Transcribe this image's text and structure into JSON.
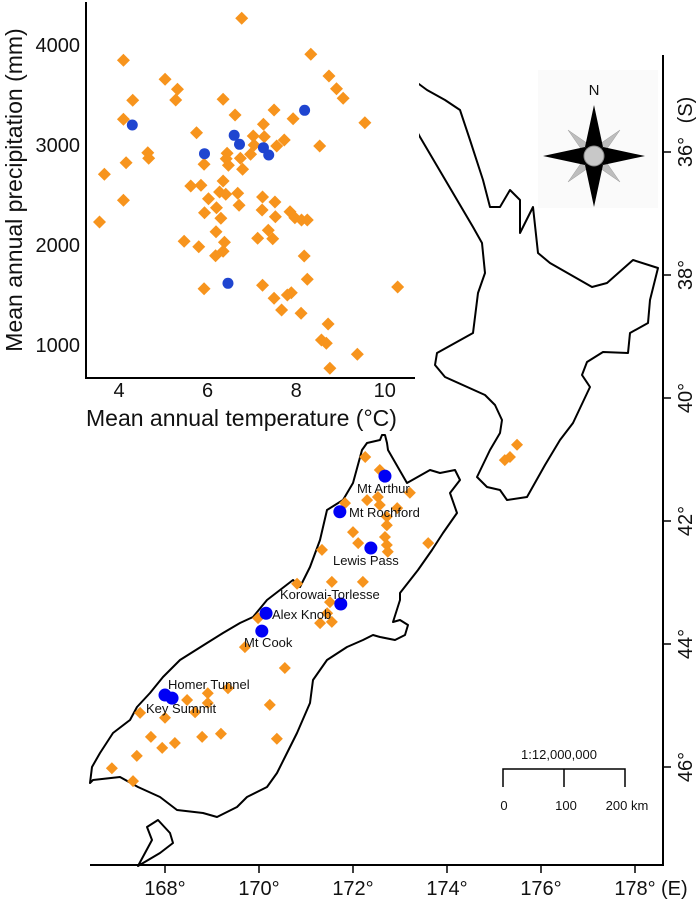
{
  "colors": {
    "orange": "#F7941D",
    "scatter_blue": "#1F45D0",
    "map_blue": "#0000F5",
    "compass_gray": "#BDBDBD"
  },
  "map": {
    "lon_ticks": [
      {
        "value": 168,
        "label": "168°"
      },
      {
        "value": 170,
        "label": "170°"
      },
      {
        "value": 172,
        "label": "172°"
      },
      {
        "value": 174,
        "label": "174°"
      },
      {
        "value": 176,
        "label": "176°"
      },
      {
        "value": 178,
        "label": "178°"
      }
    ],
    "lon_unit": "(E)",
    "lat_ticks": [
      {
        "value": 36,
        "label": "36°"
      },
      {
        "value": 38,
        "label": "38°"
      },
      {
        "value": 40,
        "label": "40°"
      },
      {
        "value": 42,
        "label": "42°"
      },
      {
        "value": 44,
        "label": "44°"
      },
      {
        "value": 46,
        "label": "46°"
      }
    ],
    "lat_unit": "(S)",
    "compass_label": "N",
    "scale": {
      "ratio": "1:12,000,000",
      "labels": [
        "0",
        "100",
        "200 km"
      ]
    },
    "sites": [
      {
        "name": "Mt Arthur",
        "lon": 172.68,
        "lat": 41.27
      },
      {
        "name": "Mt Rochford",
        "lon": 171.72,
        "lat": 41.85
      },
      {
        "name": "Lewis Pass",
        "lon": 172.38,
        "lat": 42.44
      },
      {
        "name": "Korowai-Torlesse",
        "lon": 171.74,
        "lat": 43.35
      },
      {
        "name": "Alex Knob",
        "lon": 170.15,
        "lat": 43.5
      },
      {
        "name": "Mt Cook",
        "lon": 170.06,
        "lat": 43.79
      },
      {
        "name": "Homer Tunnel",
        "lon": 168.0,
        "lat": 44.83
      },
      {
        "name": "Key Summit",
        "lon": 168.15,
        "lat": 44.88
      }
    ],
    "other_sites": [
      [
        172.26,
        40.96
      ],
      [
        172.57,
        41.17
      ],
      [
        173.21,
        41.54
      ],
      [
        172.3,
        41.66
      ],
      [
        172.53,
        41.61
      ],
      [
        172.57,
        41.74
      ],
      [
        172.94,
        41.79
      ],
      [
        171.83,
        41.71
      ],
      [
        172.72,
        41.93
      ],
      [
        172.72,
        42.07
      ],
      [
        172.0,
        42.18
      ],
      [
        172.68,
        42.26
      ],
      [
        172.11,
        42.36
      ],
      [
        172.72,
        42.39
      ],
      [
        172.74,
        42.5
      ],
      [
        173.6,
        42.36
      ],
      [
        171.34,
        42.47
      ],
      [
        171.55,
        42.99
      ],
      [
        172.21,
        42.99
      ],
      [
        170.81,
        43.02
      ],
      [
        171.51,
        43.32
      ],
      [
        171.45,
        43.5
      ],
      [
        171.3,
        43.66
      ],
      [
        171.55,
        43.64
      ],
      [
        169.98,
        43.58
      ],
      [
        169.7,
        44.05
      ],
      [
        170.55,
        44.39
      ],
      [
        168.47,
        44.91
      ],
      [
        168.91,
        44.8
      ],
      [
        168.91,
        44.96
      ],
      [
        169.34,
        44.72
      ],
      [
        168.64,
        45.11
      ],
      [
        170.23,
        44.99
      ],
      [
        167.47,
        45.12
      ],
      [
        168.0,
        45.2
      ],
      [
        167.7,
        45.51
      ],
      [
        168.79,
        45.51
      ],
      [
        169.19,
        45.46
      ],
      [
        170.38,
        45.54
      ],
      [
        167.4,
        45.82
      ],
      [
        167.94,
        45.69
      ],
      [
        168.21,
        45.61
      ],
      [
        166.87,
        46.02
      ],
      [
        167.32,
        46.23
      ],
      [
        175.49,
        40.76
      ],
      [
        175.34,
        40.96
      ],
      [
        175.23,
        41.01
      ]
    ]
  },
  "chart_data": {
    "type": "scatter",
    "title": "",
    "xlabel": "Mean annual temperature (°C)",
    "ylabel": "Mean annual precipitation (mm)",
    "xlim": [
      3.4,
      10.7
    ],
    "ylim": [
      720,
      4400
    ],
    "xticks": [
      4,
      6,
      8,
      10
    ],
    "yticks": [
      1000,
      2000,
      3000,
      4000
    ],
    "grid": false,
    "series": [
      {
        "marker": "diamond",
        "color": "#F7941D",
        "points": [
          [
            6.77,
            4267
          ],
          [
            8.33,
            3907
          ],
          [
            4.1,
            3847
          ],
          [
            5.04,
            3657
          ],
          [
            5.32,
            3557
          ],
          [
            5.28,
            3450
          ],
          [
            4.31,
            3447
          ],
          [
            6.35,
            3457
          ],
          [
            8.74,
            3690
          ],
          [
            8.91,
            3563
          ],
          [
            9.06,
            3467
          ],
          [
            9.55,
            3223
          ],
          [
            4.1,
            3257
          ],
          [
            6.62,
            3300
          ],
          [
            7.5,
            3350
          ],
          [
            7.93,
            3263
          ],
          [
            5.75,
            3123
          ],
          [
            7.26,
            3207
          ],
          [
            7.03,
            3090
          ],
          [
            7.28,
            3083
          ],
          [
            7.05,
            3000
          ],
          [
            7.56,
            2990
          ],
          [
            7.73,
            3050
          ],
          [
            8.53,
            2990
          ],
          [
            4.65,
            2923
          ],
          [
            4.67,
            2867
          ],
          [
            4.16,
            2823
          ],
          [
            3.67,
            2707
          ],
          [
            6.44,
            2917
          ],
          [
            6.42,
            2863
          ],
          [
            6.74,
            2867
          ],
          [
            6.97,
            2907
          ],
          [
            5.92,
            2807
          ],
          [
            6.47,
            2797
          ],
          [
            6.79,
            2757
          ],
          [
            6.35,
            2640
          ],
          [
            5.62,
            2590
          ],
          [
            5.85,
            2597
          ],
          [
            6.27,
            2530
          ],
          [
            6.41,
            2507
          ],
          [
            6.68,
            2517
          ],
          [
            6.02,
            2463
          ],
          [
            4.1,
            2447
          ],
          [
            7.24,
            2480
          ],
          [
            7.52,
            2430
          ],
          [
            6.71,
            2397
          ],
          [
            5.93,
            2323
          ],
          [
            6.2,
            2373
          ],
          [
            7.23,
            2350
          ],
          [
            6.3,
            2267
          ],
          [
            7.53,
            2283
          ],
          [
            7.86,
            2333
          ],
          [
            7.97,
            2273
          ],
          [
            8.12,
            2250
          ],
          [
            8.25,
            2250
          ],
          [
            3.56,
            2230
          ],
          [
            7.37,
            2147
          ],
          [
            7.47,
            2063
          ],
          [
            7.13,
            2067
          ],
          [
            6.19,
            2133
          ],
          [
            6.38,
            2027
          ],
          [
            5.47,
            2037
          ],
          [
            5.8,
            1983
          ],
          [
            6.35,
            1937
          ],
          [
            6.18,
            1893
          ],
          [
            8.18,
            1890
          ],
          [
            8.25,
            1657
          ],
          [
            5.92,
            1563
          ],
          [
            7.24,
            1597
          ],
          [
            10.29,
            1580
          ],
          [
            7.89,
            1523
          ],
          [
            7.8,
            1500
          ],
          [
            7.5,
            1467
          ],
          [
            7.67,
            1350
          ],
          [
            8.11,
            1317
          ],
          [
            8.72,
            1210
          ],
          [
            8.57,
            1050
          ],
          [
            8.68,
            1017
          ],
          [
            9.38,
            907
          ],
          [
            8.76,
            767
          ]
        ]
      },
      {
        "marker": "circle",
        "color": "#1F45D0",
        "points": [
          [
            4.3,
            3200
          ],
          [
            5.93,
            2913
          ],
          [
            6.6,
            3097
          ],
          [
            6.72,
            3007
          ],
          [
            7.26,
            2973
          ],
          [
            7.38,
            2900
          ],
          [
            8.19,
            3347
          ],
          [
            6.46,
            1617
          ]
        ]
      }
    ]
  }
}
